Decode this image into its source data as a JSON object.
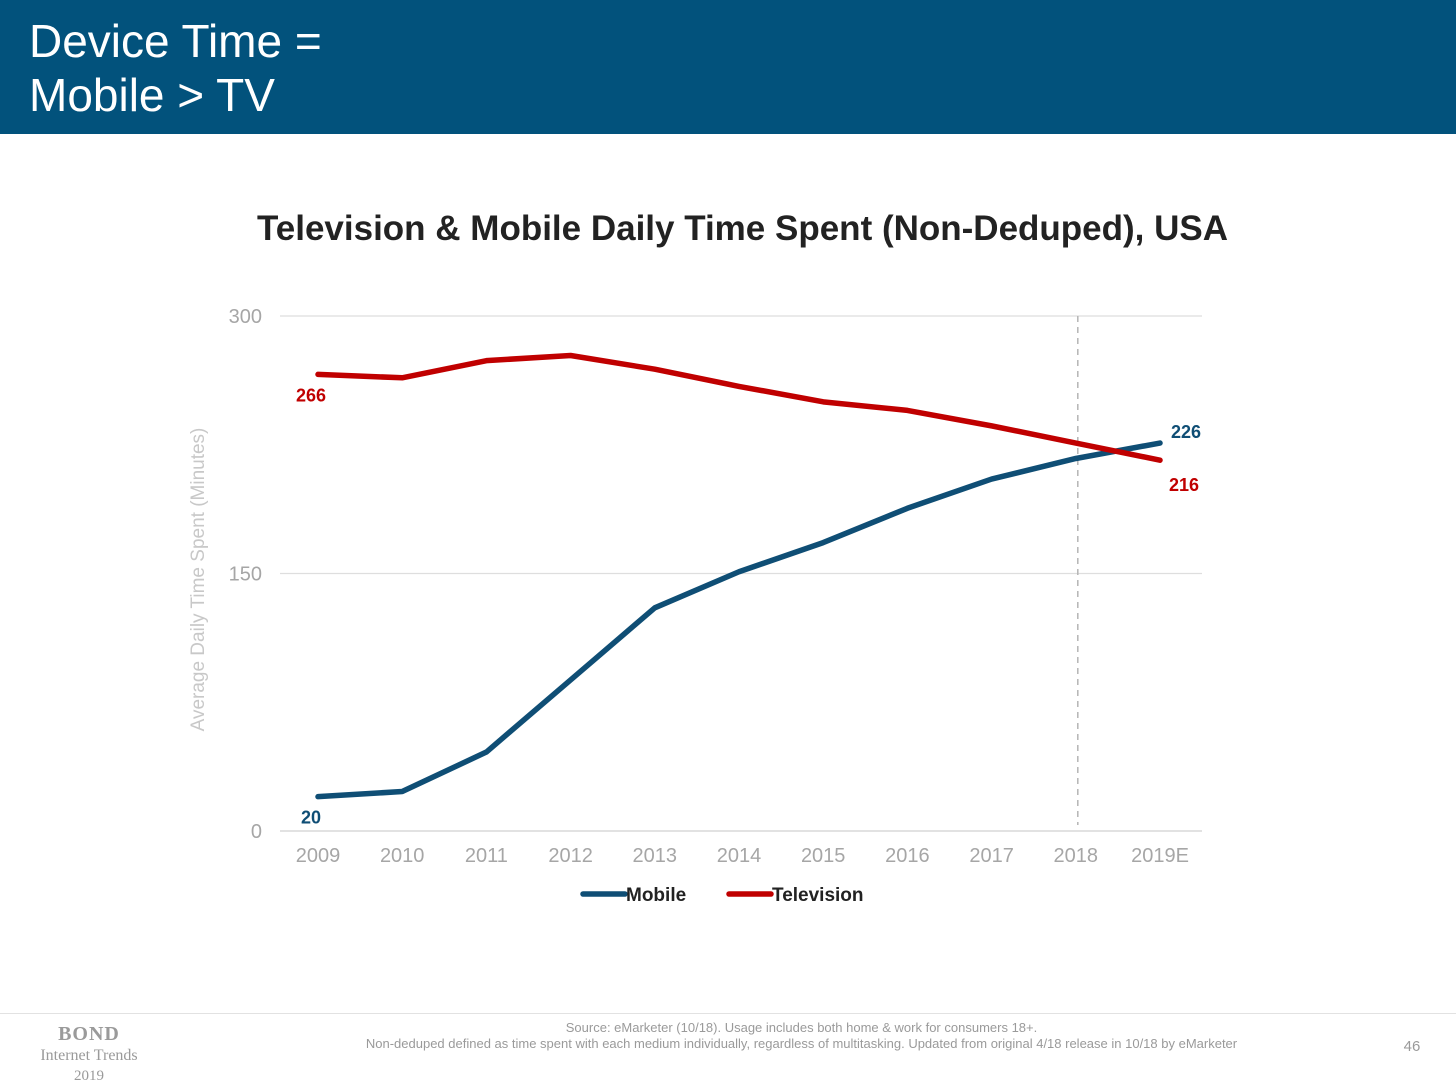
{
  "header": {
    "title_line1": "Device Time =",
    "title_line2": "Mobile > TV",
    "background": "#02527c"
  },
  "chart_data": {
    "type": "line",
    "title": "Television & Mobile Daily Time Spent (Non-Deduped), USA",
    "ylabel": "Average Daily Time Spent (Minutes)",
    "xlabel": "",
    "categories": [
      "2009",
      "2010",
      "2011",
      "2012",
      "2013",
      "2014",
      "2015",
      "2016",
      "2017",
      "2018",
      "2019E"
    ],
    "ylim": [
      0,
      300
    ],
    "yticks": [
      0,
      150,
      300
    ],
    "grid": true,
    "vertical_reference_line_at": "2018",
    "legend_position": "bottom",
    "series": [
      {
        "name": "Mobile",
        "color": "#0f4e75",
        "values": [
          20,
          23,
          46,
          88,
          130,
          151,
          168,
          188,
          205,
          217,
          226
        ],
        "labels": [
          {
            "index": 0,
            "text": "20",
            "position": "below"
          },
          {
            "index": 10,
            "text": "226",
            "position": "above-right"
          }
        ]
      },
      {
        "name": "Television",
        "color": "#c00000",
        "values": [
          266,
          264,
          274,
          277,
          269,
          259,
          250,
          245,
          236,
          226,
          216
        ],
        "labels": [
          {
            "index": 0,
            "text": "266",
            "position": "below"
          },
          {
            "index": 10,
            "text": "216",
            "position": "below-right"
          }
        ]
      }
    ]
  },
  "footer": {
    "logo_line1": "BOND",
    "logo_line2": "Internet Trends",
    "logo_line3": "2019",
    "source_line1": "Source: eMarketer (10/18). Usage includes both home & work for consumers 18+.",
    "source_line2": "Non-deduped defined as time spent with each medium individually, regardless of multitasking. Updated from original 4/18 release in 10/18 by eMarketer",
    "page_number": "46"
  }
}
